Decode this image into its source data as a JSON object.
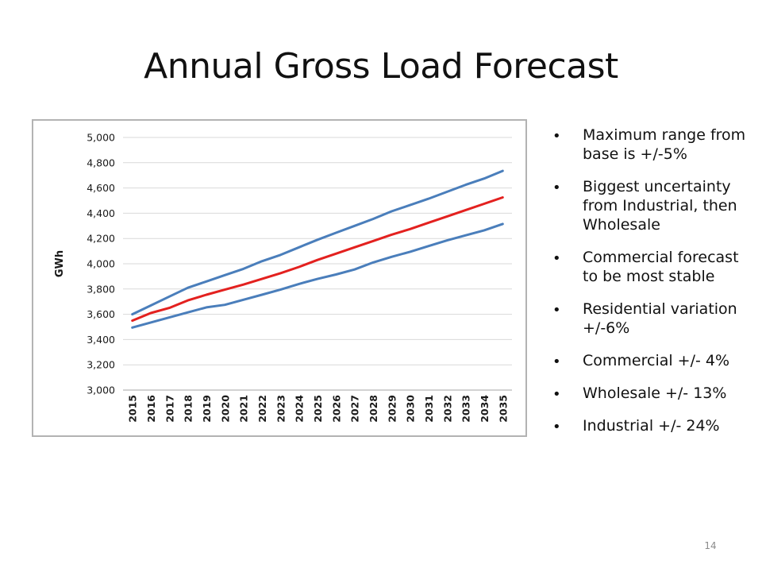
{
  "slide": {
    "title": "Annual Gross Load Forecast",
    "page_number": "14"
  },
  "bullets": [
    "Maximum range from base is +/-5%",
    "Biggest uncertainty from Industrial, then Wholesale",
    "Commercial forecast to be most stable",
    "Residential variation  +/-6%",
    "Commercial +/- 4%",
    "Wholesale +/- 13%",
    "Industrial +/- 24%"
  ],
  "chart_data": {
    "type": "line",
    "title": "",
    "xlabel": "",
    "ylabel": "GWh",
    "x": [
      "2015",
      "2016",
      "2017",
      "2018",
      "2019",
      "2020",
      "2021",
      "2022",
      "2023",
      "2024",
      "2025",
      "2026",
      "2027",
      "2028",
      "2029",
      "2030",
      "2031",
      "2032",
      "2033",
      "2034",
      "2035"
    ],
    "ylim": [
      3000,
      5000
    ],
    "yticks": [
      3000,
      3200,
      3400,
      3600,
      3800,
      4000,
      4200,
      4400,
      4600,
      4800,
      5000
    ],
    "ytick_labels": [
      "3,000",
      "3,200",
      "3,400",
      "3,600",
      "3,800",
      "4,000",
      "4,200",
      "4,400",
      "4,600",
      "4,800",
      "5,000"
    ],
    "grid": true,
    "legend": "none",
    "series": [
      {
        "color": "#4a7ebb",
        "values": [
          3600,
          3670,
          3740,
          3810,
          3860,
          3910,
          3960,
          4020,
          4070,
          4130,
          4190,
          4245,
          4300,
          4355,
          4415,
          4465,
          4515,
          4570,
          4625,
          4675,
          4735
        ]
      },
      {
        "color": "#e3211f",
        "values": [
          3550,
          3610,
          3650,
          3710,
          3755,
          3795,
          3835,
          3880,
          3925,
          3975,
          4030,
          4080,
          4130,
          4180,
          4230,
          4275,
          4325,
          4375,
          4425,
          4475,
          4525
        ]
      },
      {
        "color": "#4a7ebb",
        "values": [
          3495,
          3535,
          3575,
          3615,
          3655,
          3675,
          3715,
          3755,
          3795,
          3840,
          3880,
          3915,
          3955,
          4010,
          4055,
          4095,
          4140,
          4185,
          4225,
          4265,
          4315
        ]
      }
    ]
  }
}
